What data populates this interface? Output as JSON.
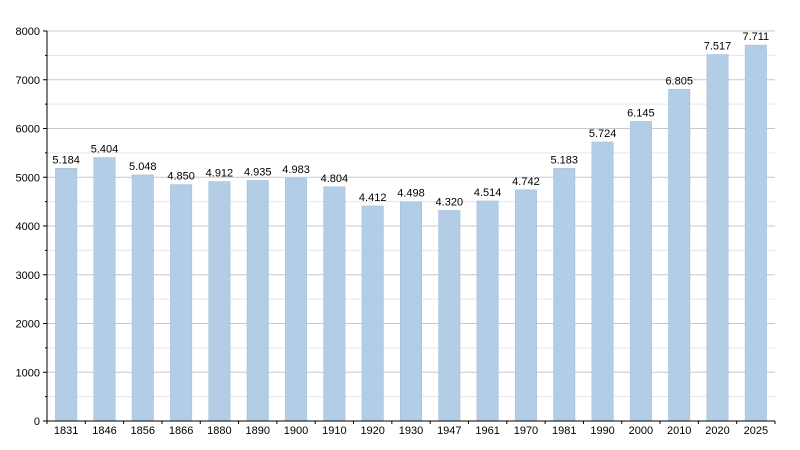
{
  "chart_data": {
    "type": "bar",
    "categories": [
      "1831",
      "1846",
      "1856",
      "1866",
      "1880",
      "1890",
      "1900",
      "1910",
      "1920",
      "1930",
      "1947",
      "1961",
      "1970",
      "1981",
      "1990",
      "2000",
      "2010",
      "2020",
      "2025"
    ],
    "values": [
      5184,
      5404,
      5048,
      4850,
      4912,
      4935,
      4983,
      4804,
      4412,
      4498,
      4320,
      4514,
      4742,
      5183,
      5724,
      6145,
      6805,
      7517,
      7711
    ],
    "data_labels": [
      "5.184",
      "5.404",
      "5.048",
      "4.850",
      "4.912",
      "4.935",
      "4.983",
      "4.804",
      "4.412",
      "4.498",
      "4.320",
      "4.514",
      "4.742",
      "5.183",
      "5.724",
      "6.145",
      "6.805",
      "7.517",
      "7.711"
    ],
    "y_ticks": [
      0,
      1000,
      2000,
      3000,
      4000,
      5000,
      6000,
      7000,
      8000
    ],
    "ylim": [
      0,
      8000
    ],
    "title": "",
    "xlabel": "",
    "ylabel": "",
    "grid": true,
    "bar_color": "#b3cde6",
    "grid_color": "#c8c8c8"
  }
}
